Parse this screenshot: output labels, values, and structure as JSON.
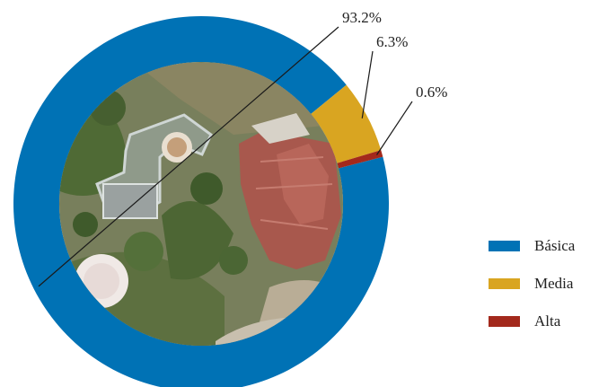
{
  "chart_data": {
    "type": "pie",
    "variant": "donut",
    "center_content": "aerial photograph of rooftops and trees",
    "series": [
      {
        "name": "Básica",
        "value": 93.2,
        "label": "93.2%",
        "color": "#0072b5"
      },
      {
        "name": "Media",
        "value": 6.3,
        "label": "6.3%",
        "color": "#d9a521"
      },
      {
        "name": "Alta",
        "value": 0.6,
        "label": "0.6%",
        "color": "#a3291c"
      }
    ],
    "legend": {
      "position": "right"
    }
  }
}
